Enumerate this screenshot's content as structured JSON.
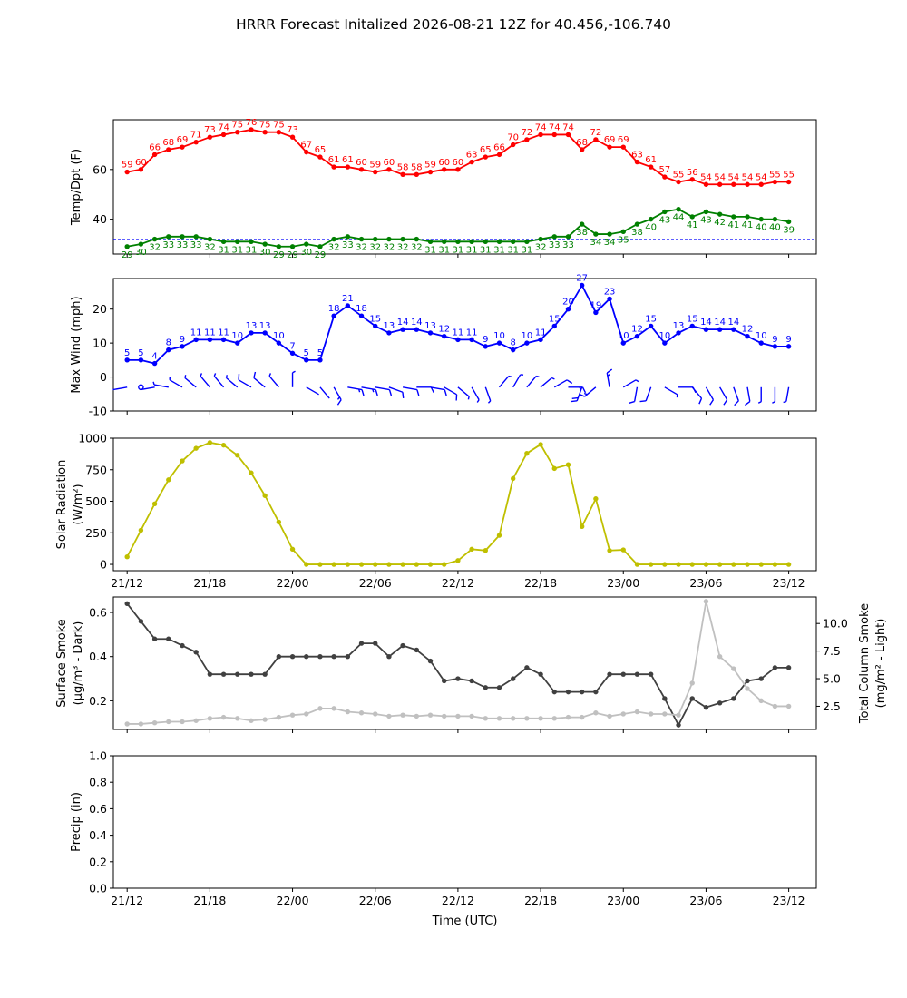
{
  "title": "HRRR Forecast Initalized 2026-08-21 12Z for 40.456,-106.740",
  "x_tick_labels": [
    "21/12",
    "21/18",
    "22/00",
    "22/06",
    "22/12",
    "22/18",
    "23/00",
    "23/06",
    "23/12"
  ],
  "x_label": "Time (UTC)",
  "hours": [
    0,
    1,
    2,
    3,
    4,
    5,
    6,
    7,
    8,
    9,
    10,
    11,
    12,
    13,
    14,
    15,
    16,
    17,
    18,
    19,
    20,
    21,
    22,
    23,
    24,
    25,
    26,
    27,
    28,
    29,
    30,
    31,
    32,
    33,
    34,
    35,
    36,
    37,
    38,
    39,
    40,
    41,
    42,
    43,
    44,
    45,
    46,
    47,
    48
  ],
  "colors": {
    "temp": "#ff0000",
    "dewpoint": "#008000",
    "wind": "#0000ff",
    "solar": "#bfbf00",
    "smoke_surface": "#404040",
    "smoke_column": "#c0c0c0"
  },
  "chart_data": [
    {
      "type": "line",
      "ylabel": "Temp/Dpt (F)",
      "ylim": [
        26,
        80
      ],
      "yticks": [
        40,
        60
      ],
      "reference_line": 32,
      "series": [
        {
          "name": "Temperature",
          "color": "#ff0000",
          "values": [
            59,
            60,
            66,
            68,
            69,
            71,
            73,
            74,
            75,
            76,
            75,
            75,
            73,
            67,
            65,
            61,
            61,
            60,
            59,
            60,
            58,
            58,
            59,
            60,
            60,
            63,
            65,
            66,
            70,
            72,
            74,
            74,
            74,
            68,
            72,
            69,
            69,
            63,
            61,
            57,
            55,
            56,
            54,
            54,
            54,
            54,
            54,
            55,
            55
          ]
        },
        {
          "name": "Dewpoint",
          "color": "#008000",
          "values": [
            29,
            30,
            32,
            33,
            33,
            33,
            32,
            31,
            31,
            31,
            30,
            29,
            29,
            30,
            29,
            32,
            33,
            32,
            32,
            32,
            32,
            32,
            31,
            31,
            31,
            31,
            31,
            31,
            31,
            31,
            32,
            33,
            33,
            38,
            34,
            34,
            35,
            38,
            40,
            43,
            44,
            41,
            43,
            42,
            41,
            41,
            40,
            40,
            39
          ]
        }
      ]
    },
    {
      "type": "line",
      "ylabel": "Max Wind (mph)",
      "ylim": [
        -10,
        29
      ],
      "yticks": [
        -10,
        0,
        10,
        20
      ],
      "series": [
        {
          "name": "Max Wind",
          "color": "#0000ff",
          "values": [
            5,
            5,
            4,
            8,
            9,
            11,
            11,
            11,
            10,
            13,
            13,
            10,
            7,
            5,
            5,
            18,
            21,
            18,
            15,
            13,
            14,
            14,
            13,
            12,
            11,
            11,
            9,
            10,
            8,
            10,
            11,
            15,
            20,
            27,
            19,
            23,
            10,
            12,
            15,
            10,
            13,
            15,
            14,
            14,
            14,
            12,
            10,
            9,
            9
          ]
        }
      ],
      "wind_barb_directions_deg": [
        260,
        0,
        260,
        280,
        300,
        310,
        320,
        320,
        310,
        300,
        310,
        320,
        0,
        120,
        140,
        150,
        100,
        100,
        100,
        110,
        100,
        90,
        100,
        120,
        130,
        150,
        160,
        40,
        30,
        40,
        50,
        60,
        90,
        200,
        230,
        350,
        60,
        190,
        200,
        120,
        90,
        140,
        150,
        150,
        160,
        170,
        180,
        180,
        190
      ]
    },
    {
      "type": "line",
      "ylabel": "Solar Radiation\n(W/m²)",
      "ylim": [
        -50,
        1000
      ],
      "yticks": [
        0,
        250,
        500,
        750,
        1000
      ],
      "series": [
        {
          "name": "Solar Radiation",
          "color": "#bfbf00",
          "values": [
            60,
            270,
            480,
            670,
            820,
            920,
            965,
            945,
            865,
            725,
            545,
            335,
            120,
            0,
            0,
            0,
            0,
            0,
            0,
            0,
            0,
            0,
            0,
            0,
            30,
            120,
            110,
            230,
            680,
            880,
            950,
            760,
            790,
            300,
            520,
            110,
            115,
            0,
            0,
            0,
            0,
            0,
            0,
            0,
            0,
            0,
            0,
            0,
            0
          ]
        }
      ]
    },
    {
      "type": "line",
      "ylabel": "Surface Smoke\n(µg/m³ - Dark)",
      "ylim": [
        0.07,
        0.67
      ],
      "yticks": [
        0.2,
        0.4,
        0.6
      ],
      "ylabel_right": "Total Column Smoke\n(mg/m² - Light)",
      "ylim_right": [
        0.4,
        12.4
      ],
      "yticks_right": [
        2.5,
        5.0,
        7.5,
        10.0
      ],
      "series": [
        {
          "name": "Surface Smoke",
          "axis": "left",
          "color": "#404040",
          "values": [
            0.64,
            0.56,
            0.48,
            0.48,
            0.45,
            0.42,
            0.32,
            0.32,
            0.32,
            0.32,
            0.32,
            0.4,
            0.4,
            0.4,
            0.4,
            0.4,
            0.4,
            0.46,
            0.46,
            0.4,
            0.45,
            0.43,
            0.38,
            0.29,
            0.3,
            0.29,
            0.26,
            0.26,
            0.3,
            0.35,
            0.32,
            0.24,
            0.24,
            0.24,
            0.24,
            0.32,
            0.32,
            0.32,
            0.32,
            0.21,
            0.09,
            0.21,
            0.17,
            0.19,
            0.21,
            0.29,
            0.3,
            0.35,
            0.35
          ]
        },
        {
          "name": "Total Column Smoke",
          "axis": "right",
          "color": "#c0c0c0",
          "values": [
            0.9,
            0.9,
            1.0,
            1.1,
            1.1,
            1.2,
            1.4,
            1.5,
            1.4,
            1.2,
            1.3,
            1.5,
            1.7,
            1.8,
            2.3,
            2.3,
            2.0,
            1.9,
            1.8,
            1.6,
            1.7,
            1.6,
            1.7,
            1.6,
            1.6,
            1.6,
            1.4,
            1.4,
            1.4,
            1.4,
            1.4,
            1.4,
            1.5,
            1.5,
            1.9,
            1.6,
            1.8,
            2.0,
            1.8,
            1.8,
            1.7,
            4.6,
            12.0,
            7.0,
            5.9,
            4.1,
            3.0,
            2.5,
            2.5
          ]
        }
      ]
    },
    {
      "type": "line",
      "ylabel": "Precip (in)",
      "xlabel": "Time (UTC)",
      "ylim": [
        0,
        1
      ],
      "yticks": [
        0.0,
        0.2,
        0.4,
        0.6,
        0.8,
        1.0
      ],
      "series": []
    }
  ]
}
